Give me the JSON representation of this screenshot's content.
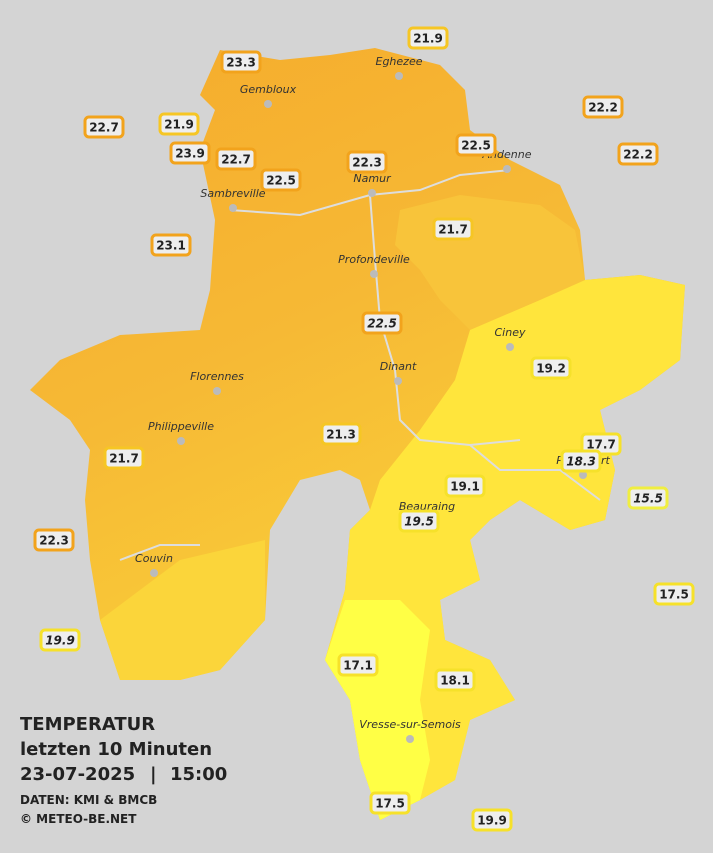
{
  "stations": [
    {
      "value": 21.9,
      "color": "#f6c624",
      "italic": false
    },
    {
      "value": 23.3,
      "color": "#f2a31c",
      "italic": false
    },
    {
      "value": 22.7,
      "color": "#f2a31c",
      "italic": false
    },
    {
      "value": 21.9,
      "color": "#f6c624",
      "italic": false
    },
    {
      "value": 23.9,
      "color": "#f2a31c",
      "italic": false
    },
    {
      "value": 22.7,
      "color": "#f2a31c",
      "italic": false
    },
    {
      "value": 22.5,
      "color": "#f2a31c",
      "italic": false
    },
    {
      "value": 22.3,
      "color": "#f2a31c",
      "italic": false
    },
    {
      "value": 22.5,
      "color": "#f2a31c",
      "italic": false
    },
    {
      "value": 22.2,
      "color": "#f2a31c",
      "italic": false
    },
    {
      "value": 22.2,
      "color": "#f2a31c",
      "italic": false
    },
    {
      "value": 23.1,
      "color": "#f2a31c",
      "italic": false
    },
    {
      "value": 21.7,
      "color": "#f6c624",
      "italic": false
    },
    {
      "value": 22.5,
      "color": "#f2a31c",
      "italic": true
    },
    {
      "value": 19.2,
      "color": "#f6e12a",
      "italic": false
    },
    {
      "value": 21.3,
      "color": "#f6c624",
      "italic": false
    },
    {
      "value": 17.7,
      "color": "#f6e12a",
      "italic": false
    },
    {
      "value": 18.3,
      "color": "#f6e12a",
      "italic": true
    },
    {
      "value": 19.1,
      "color": "#f6e12a",
      "italic": false
    },
    {
      "value": 15.5,
      "color": "#f0ee40",
      "italic": true
    },
    {
      "value": 19.5,
      "color": "#f6e12a",
      "italic": true
    },
    {
      "value": 21.7,
      "color": "#f6c624",
      "italic": false
    },
    {
      "value": 22.3,
      "color": "#f2a31c",
      "italic": false
    },
    {
      "value": 17.5,
      "color": "#f6e12a",
      "italic": false
    },
    {
      "value": 19.9,
      "color": "#f6e12a",
      "italic": true
    },
    {
      "value": 17.1,
      "color": "#f6e12a",
      "italic": false
    },
    {
      "value": 18.1,
      "color": "#f6e12a",
      "italic": false
    },
    {
      "value": 17.5,
      "color": "#f6e12a",
      "italic": false
    },
    {
      "value": 19.9,
      "color": "#f6e12a",
      "italic": false
    }
  ],
  "towns": [
    "Eghezee",
    "Gembloux",
    "Andenne",
    "Namur",
    "Sambreville",
    "Profondeville",
    "Ciney",
    "Dinant",
    "Florennes",
    "Philippeville",
    "Rochefort",
    "Beauraing",
    "Couvin",
    "Vresse-sur-Semois"
  ],
  "legend": {
    "title": "TEMPERATUR",
    "subtitle": "letzten 10 Minuten",
    "date": "23-07-2025",
    "separator": "|",
    "time": "15:00",
    "source": "DATEN: KMI & BMCB",
    "copyright": "© METEO-BE.NET"
  }
}
